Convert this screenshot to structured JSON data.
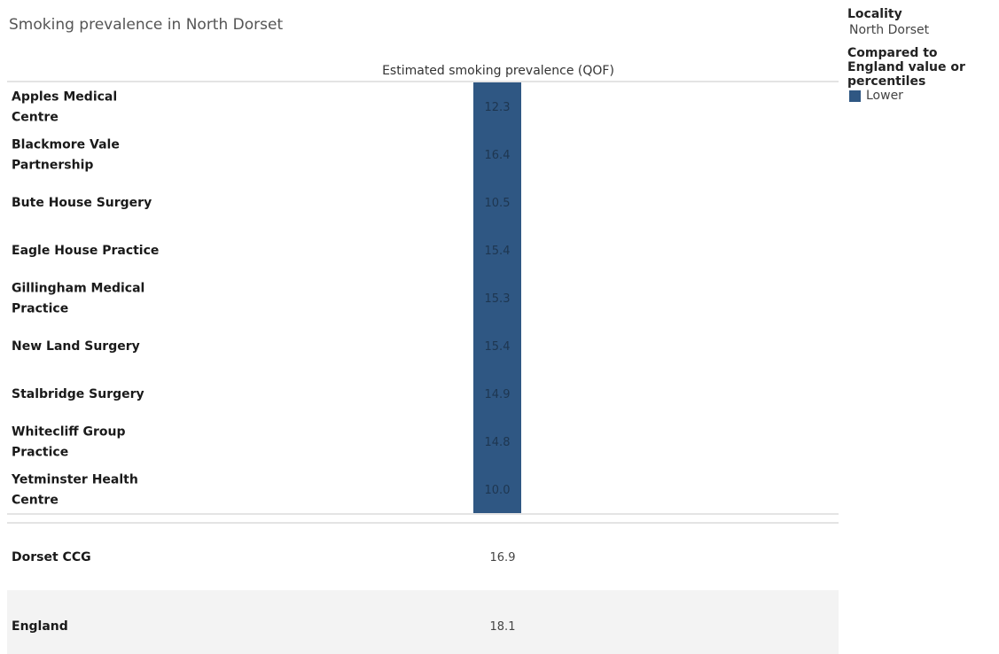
{
  "chart_data": {
    "type": "table",
    "title": "Smoking prevalence in North Dorset",
    "measure": "Estimated smoking prevalence (QOF)",
    "legend": {
      "locality_heading": "Locality",
      "locality_value": "North Dorset",
      "comparison_heading": "Compared to England value or percentiles",
      "items": [
        {
          "label": "Lower",
          "color": "#2f5783"
        }
      ]
    },
    "rows": [
      {
        "label": [
          "Apples Medical",
          "Centre"
        ],
        "value": 12.3
      },
      {
        "label": [
          "Blackmore Vale",
          "Partnership"
        ],
        "value": 16.4
      },
      {
        "label": [
          "Bute House Surgery"
        ],
        "value": 10.5
      },
      {
        "label": [
          "Eagle House Practice"
        ],
        "value": 15.4
      },
      {
        "label": [
          "Gillingham Medical",
          "Practice"
        ],
        "value": 15.3
      },
      {
        "label": [
          "New Land Surgery"
        ],
        "value": 15.4
      },
      {
        "label": [
          "Stalbridge Surgery"
        ],
        "value": 14.9
      },
      {
        "label": [
          "Whitecliff Group",
          "Practice"
        ],
        "value": 14.8
      },
      {
        "label": [
          "Yetminster Health",
          "Centre"
        ],
        "value": 10.0
      }
    ],
    "summary_rows": [
      {
        "label": "Dorset CCG",
        "value": "16.9"
      },
      {
        "label": "England",
        "value": "18.1"
      }
    ],
    "colors": {
      "lower": "#2f5783",
      "summary_band": "#f3f3f3"
    }
  }
}
